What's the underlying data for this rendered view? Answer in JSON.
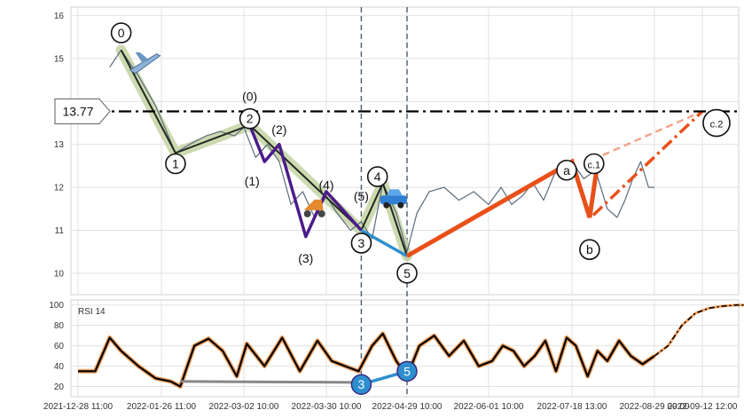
{
  "chart_data": [
    {
      "type": "line",
      "panel": "price",
      "ylim": [
        9.5,
        16.2
      ],
      "y_ticks": [
        "10",
        "11",
        "12",
        "13",
        "14",
        "15",
        "16"
      ],
      "grid": true,
      "reference_line": {
        "value": 13.77,
        "label": "13.77",
        "color": "#000000"
      },
      "series": [
        {
          "values_desc": "price",
          "x": [
            "2022-01-08",
            "2022-01-12",
            "2022-01-18",
            "2022-01-24",
            "2022-02-01",
            "2022-02-07",
            "2022-02-14",
            "2022-02-20",
            "2022-02-26",
            "2022-03-02",
            "2022-03-06",
            "2022-03-10",
            "2022-03-14",
            "2022-03-18",
            "2022-03-22",
            "2022-03-26",
            "2022-03-30",
            "2022-04-03",
            "2022-04-08",
            "2022-04-12",
            "2022-04-16",
            "2022-04-20",
            "2022-04-25",
            "2022-04-29",
            "2022-05-03",
            "2022-05-08",
            "2022-05-14",
            "2022-05-20",
            "2022-05-26",
            "2022-06-01",
            "2022-06-08",
            "2022-06-14",
            "2022-06-20",
            "2022-06-26",
            "2022-07-02",
            "2022-07-08",
            "2022-07-14",
            "2022-07-18",
            "2022-07-24",
            "2022-07-30",
            "2022-08-05",
            "2022-08-10",
            "2022-08-14",
            "2022-08-18",
            "2022-08-22",
            "2022-08-26",
            "2022-08-29"
          ],
          "y": [
            14.8,
            15.2,
            14.6,
            13.9,
            12.8,
            13.0,
            13.2,
            13.3,
            13.2,
            13.4,
            12.7,
            13.0,
            12.6,
            11.6,
            11.9,
            11.3,
            11.8,
            11.4,
            11.0,
            11.2,
            10.8,
            12.1,
            11.4,
            10.5,
            11.4,
            11.9,
            12.0,
            11.7,
            11.9,
            11.6,
            12.0,
            11.6,
            11.8,
            12.1,
            11.7,
            12.3,
            12.5,
            12.6,
            12.2,
            12.4,
            11.5,
            11.3,
            11.7,
            12.2,
            12.6,
            12.0,
            12.0
          ]
        }
      ],
      "wave_points": [
        {
          "label": "0",
          "x": "2022-01-12",
          "y": 15.2,
          "label_y": 15.6
        },
        {
          "label": "1",
          "x": "2022-02-01",
          "y": 12.8,
          "label_y": 12.55
        },
        {
          "label": "2",
          "x": "2022-03-04",
          "y": 13.45,
          "label_y": 13.6,
          "extra": "(0)"
        },
        {
          "label": "(1)",
          "x": "2022-03-09",
          "y": 12.6,
          "label_y": 12.15
        },
        {
          "label": "(2)",
          "x": "2022-03-14",
          "y": 13.0,
          "label_y": 13.35
        },
        {
          "label": "(3)",
          "x": "2022-03-23",
          "y": 10.85,
          "label_y": 10.35
        },
        {
          "label": "(4)",
          "x": "2022-03-30",
          "y": 11.9,
          "label_y": 12.05
        },
        {
          "label": "(5)",
          "x": "2022-04-12",
          "y": 11.0,
          "label_y": 11.8
        },
        {
          "label": "3",
          "x": "2022-04-12",
          "y": 11.0,
          "label_y": 10.7
        },
        {
          "label": "4",
          "x": "2022-04-20",
          "y": 12.1,
          "label_y": 12.25
        },
        {
          "label": "5",
          "x": "2022-04-29",
          "y": 10.4,
          "label_y": 10.0
        },
        {
          "label": "a",
          "x": "2022-07-18",
          "y": 12.6,
          "label_y": 12.4
        },
        {
          "label": "b",
          "x": "2022-07-27",
          "y": 11.3,
          "label_y": 10.55
        },
        {
          "label": "c.1",
          "x": "2022-07-31",
          "y": 12.55,
          "label_y": 12.55
        },
        {
          "label": "c.2",
          "x": "2022-09-12",
          "y": 13.77,
          "label_y": 13.5
        }
      ]
    },
    {
      "type": "line",
      "panel": "indicator",
      "label": "RSI 14",
      "ylim": [
        10,
        105
      ],
      "y_ticks": [
        "20",
        "40",
        "60",
        "80",
        "100"
      ],
      "grid": true,
      "series": [
        {
          "values_desc": "rsi",
          "x": [
            "2021-12-28",
            "2022-01-03",
            "2022-01-08",
            "2022-01-12",
            "2022-01-18",
            "2022-01-24",
            "2022-01-30",
            "2022-02-03",
            "2022-02-09",
            "2022-02-15",
            "2022-02-21",
            "2022-02-27",
            "2022-03-03",
            "2022-03-09",
            "2022-03-15",
            "2022-03-21",
            "2022-03-27",
            "2022-04-01",
            "2022-04-06",
            "2022-04-11",
            "2022-04-16",
            "2022-04-20",
            "2022-04-25",
            "2022-04-29",
            "2022-05-04",
            "2022-05-10",
            "2022-05-16",
            "2022-05-22",
            "2022-05-28",
            "2022-06-03",
            "2022-06-09",
            "2022-06-15",
            "2022-06-21",
            "2022-06-27",
            "2022-07-03",
            "2022-07-09",
            "2022-07-15",
            "2022-07-20",
            "2022-07-26",
            "2022-07-31",
            "2022-08-05",
            "2022-08-11",
            "2022-08-17",
            "2022-08-23",
            "2022-08-29"
          ],
          "y": [
            35,
            35,
            68,
            55,
            40,
            28,
            25,
            20,
            60,
            67,
            55,
            30,
            62,
            40,
            68,
            35,
            65,
            45,
            40,
            35,
            60,
            72,
            45,
            30,
            60,
            70,
            50,
            65,
            40,
            45,
            60,
            55,
            40,
            50,
            65,
            35,
            68,
            60,
            30,
            55,
            45,
            65,
            50,
            42,
            50
          ]
        },
        {
          "values_desc": "rsi_projection",
          "x": [
            "2022-08-29",
            "2022-09-02",
            "2022-09-06",
            "2022-09-10",
            "2022-09-14",
            "2022-09-18",
            "2022-09-22",
            "2022-09-26"
          ],
          "y": [
            50,
            60,
            80,
            92,
            97,
            99,
            100,
            100
          ]
        }
      ],
      "divergence_points": [
        {
          "label": "3",
          "x": "2022-04-12",
          "y": 22
        },
        {
          "label": "5",
          "x": "2022-04-29",
          "y": 35
        }
      ]
    }
  ],
  "x_ticks": [
    "2021-12-28 11:00",
    "2022-01-26 11:00",
    "2022-03-02 10:00",
    "2022-03-30 10:00",
    "2022-04-29 10:00",
    "2022-06-01 10:00",
    "2022-07-18 13:00",
    "2022-08-29 09:00",
    "2022-09-12 12:00"
  ],
  "colors": {
    "price_line": "#5c6b7a",
    "impulse_shade": "#c8d6a8",
    "sub_wave": "#4b1b8a",
    "correction": "#e8501a",
    "projection": "#f3a58a",
    "divergence": "#2e8fce",
    "rsi_line": "#000000",
    "rsi_glow": "#f0a060"
  }
}
